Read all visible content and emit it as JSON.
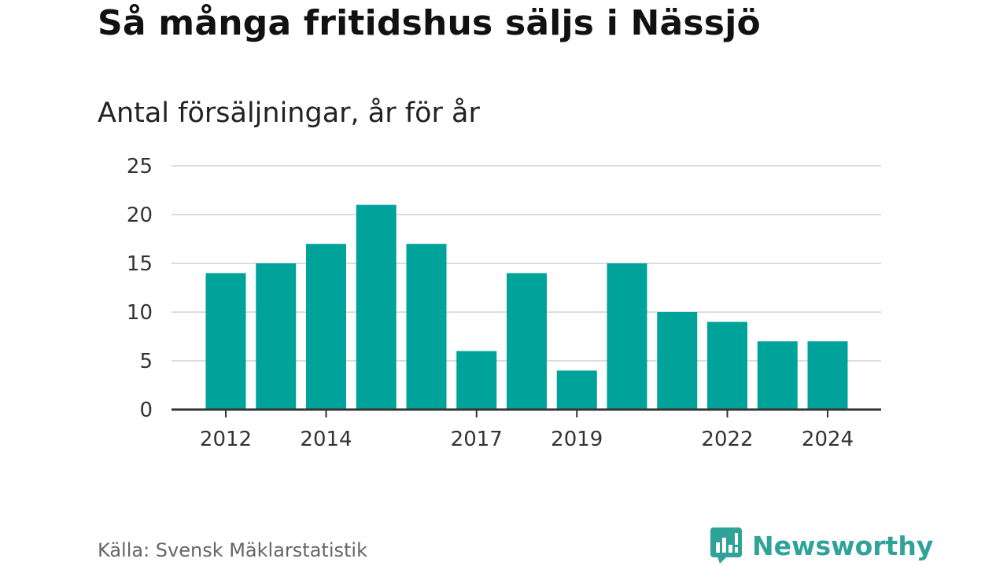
{
  "header": {
    "title": "Så många fritidshus säljs i Nässjö",
    "subtitle": "Antal försäljningar, år för år"
  },
  "footer": {
    "source": "Källa: Svensk Mäklarstatistik",
    "brand": "Newsworthy"
  },
  "colors": {
    "bar": "#00a39a",
    "brand": "#2fa39a",
    "grid": "#dddddd",
    "axis": "#333333"
  },
  "chart_data": {
    "type": "bar",
    "categories": [
      "2012",
      "2013",
      "2014",
      "2015",
      "2016",
      "2017",
      "2018",
      "2019",
      "2020",
      "2021",
      "2022",
      "2023",
      "2024"
    ],
    "values": [
      14,
      15,
      17,
      21,
      17,
      6,
      14,
      4,
      15,
      10,
      9,
      7,
      7
    ],
    "x_tick_labels": [
      "2012",
      "2014",
      "2017",
      "2019",
      "2022",
      "2024"
    ],
    "y_ticks": [
      0,
      5,
      10,
      15,
      20,
      25
    ],
    "ylim": [
      0,
      25
    ],
    "title": "Så många fritidshus säljs i Nässjö",
    "subtitle": "Antal försäljningar, år för år",
    "xlabel": "",
    "ylabel": "",
    "grid": true,
    "legend": "none"
  }
}
